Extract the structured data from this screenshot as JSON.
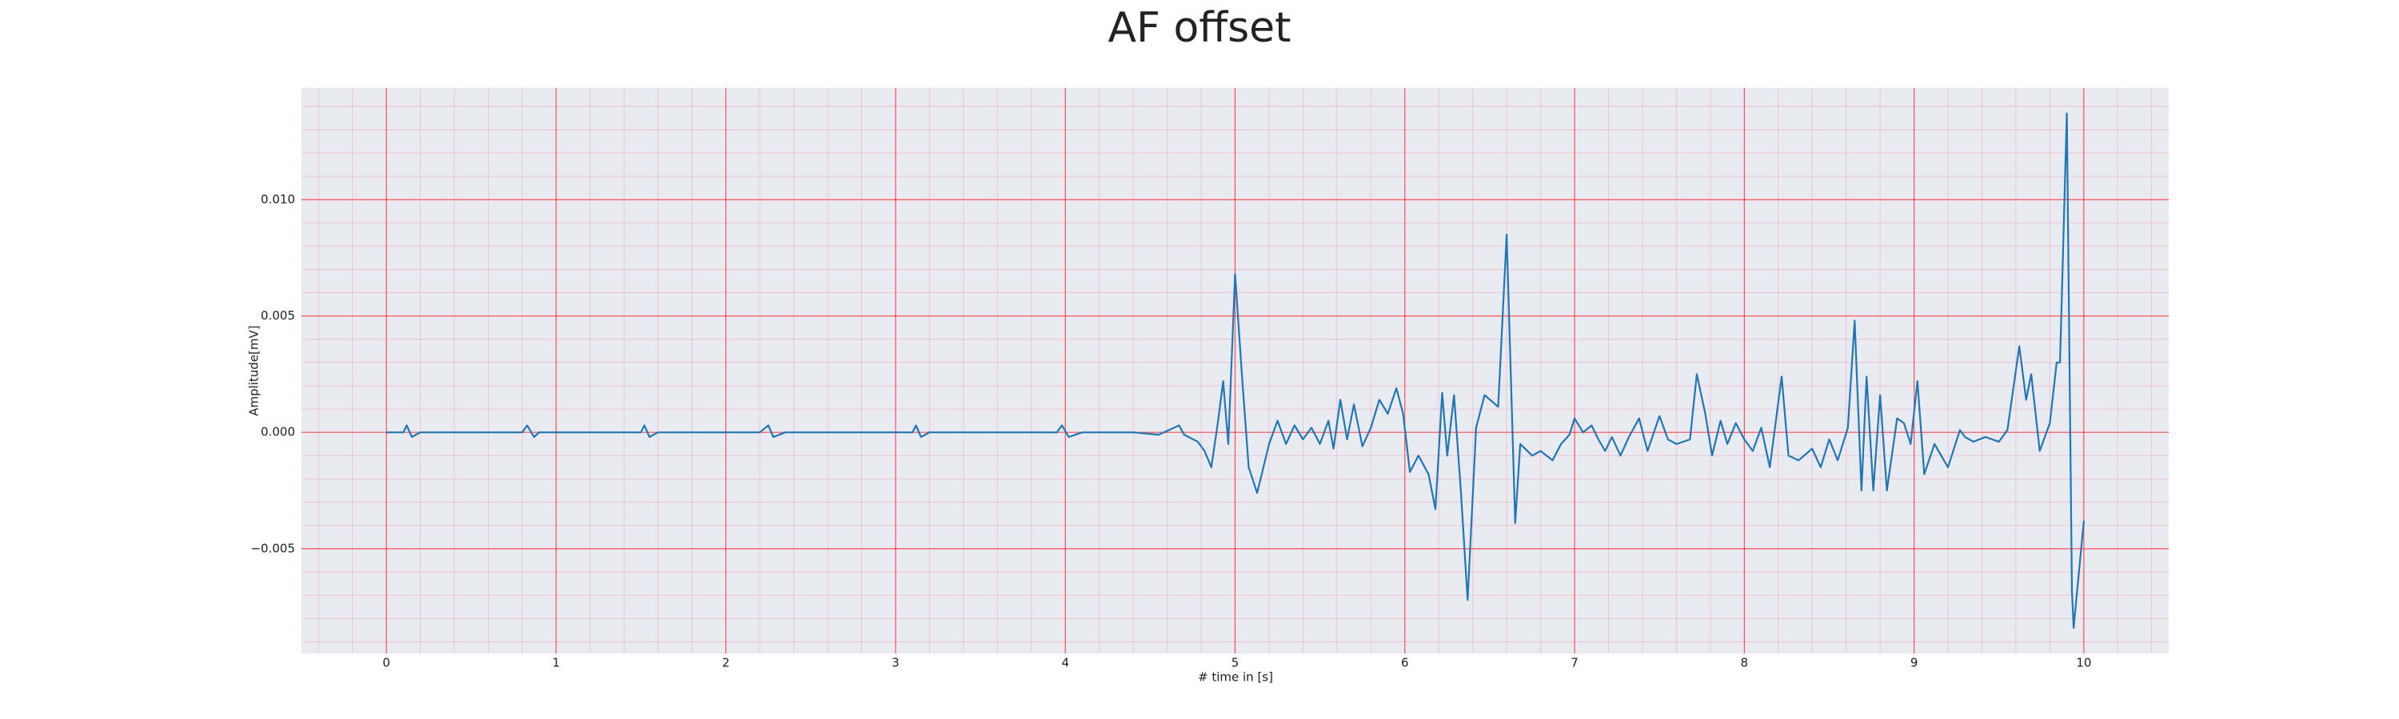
{
  "chart_data": {
    "type": "line",
    "title": "AF offset",
    "xlabel": "# time in [s]",
    "ylabel": "Amplitude[mV]",
    "xlim": [
      -0.5,
      10.5
    ],
    "ylim": [
      -0.0095,
      0.0148
    ],
    "xticks": [
      0,
      1,
      2,
      3,
      4,
      5,
      6,
      7,
      8,
      9,
      10
    ],
    "yticks": [
      {
        "value": -0.005,
        "label": "−0.005"
      },
      {
        "value": 0,
        "label": "0.000"
      },
      {
        "value": 0.005,
        "label": "0.005"
      },
      {
        "value": 0.01,
        "label": "0.010"
      }
    ],
    "grid": true,
    "minor_divisions": 5,
    "grid_color": "#ff0000",
    "background": "#eaeaf2",
    "x": [
      0.0,
      0.1,
      0.12,
      0.15,
      0.2,
      0.5,
      0.8,
      0.83,
      0.87,
      0.9,
      1.5,
      1.52,
      1.55,
      1.6,
      2.2,
      2.25,
      2.28,
      2.35,
      3.1,
      3.12,
      3.15,
      3.2,
      3.95,
      3.98,
      4.02,
      4.1,
      4.4,
      4.55,
      4.67,
      4.7,
      4.78,
      4.82,
      4.86,
      4.9,
      4.93,
      4.96,
      5.0,
      5.04,
      5.08,
      5.13,
      5.2,
      5.25,
      5.3,
      5.35,
      5.4,
      5.45,
      5.5,
      5.55,
      5.58,
      5.62,
      5.66,
      5.7,
      5.75,
      5.8,
      5.85,
      5.9,
      5.95,
      5.99,
      6.03,
      6.08,
      6.14,
      6.18,
      6.22,
      6.25,
      6.29,
      6.33,
      6.37,
      6.42,
      6.47,
      6.55,
      6.6,
      6.65,
      6.68,
      6.75,
      6.8,
      6.87,
      6.92,
      6.97,
      7.0,
      7.05,
      7.1,
      7.14,
      7.18,
      7.22,
      7.27,
      7.32,
      7.38,
      7.43,
      7.5,
      7.55,
      7.6,
      7.68,
      7.72,
      7.77,
      7.81,
      7.86,
      7.9,
      7.95,
      8.0,
      8.05,
      8.1,
      8.15,
      8.22,
      8.26,
      8.32,
      8.4,
      8.45,
      8.5,
      8.55,
      8.61,
      8.65,
      8.69,
      8.72,
      8.76,
      8.8,
      8.84,
      8.9,
      8.94,
      8.98,
      9.02,
      9.06,
      9.12,
      9.2,
      9.27,
      9.3,
      9.35,
      9.42,
      9.5,
      9.55,
      9.62,
      9.66,
      9.69,
      9.74,
      9.8,
      9.84,
      9.86,
      9.9,
      9.93,
      9.94,
      10.0
    ],
    "series": [
      {
        "name": "AF offset",
        "color": "#1f77b4",
        "values": [
          0.0,
          0.0,
          0.0003,
          -0.0002,
          0.0,
          0.0,
          0.0,
          0.0003,
          -0.0002,
          0.0,
          0.0,
          0.0003,
          -0.0002,
          0.0,
          0.0,
          0.0003,
          -0.0002,
          0.0,
          0.0,
          0.0003,
          -0.0002,
          0.0,
          0.0,
          0.0003,
          -0.0002,
          0.0,
          0.0,
          -0.0001,
          0.0003,
          -0.0001,
          -0.0004,
          -0.0008,
          -0.0015,
          0.0005,
          0.0022,
          -0.0005,
          0.0068,
          0.0025,
          -0.0015,
          -0.0026,
          -0.0005,
          0.0005,
          -0.0005,
          0.0003,
          -0.0003,
          0.0002,
          -0.0005,
          0.0005,
          -0.0007,
          0.0014,
          -0.0003,
          0.0012,
          -0.0006,
          0.0002,
          0.0014,
          0.0008,
          0.0019,
          0.0008,
          -0.0017,
          -0.001,
          -0.0018,
          -0.0033,
          0.0017,
          -0.001,
          0.0016,
          -0.0025,
          -0.0072,
          0.0002,
          0.0016,
          0.0011,
          0.0085,
          -0.0039,
          -0.0005,
          -0.001,
          -0.0008,
          -0.0012,
          -0.0005,
          -0.0001,
          0.0006,
          0.0,
          0.0003,
          -0.0003,
          -0.0008,
          -0.0002,
          -0.001,
          -0.0002,
          0.0006,
          -0.0008,
          0.0007,
          -0.0003,
          -0.0005,
          -0.0003,
          0.0025,
          0.0008,
          -0.001,
          0.0005,
          -0.0005,
          0.0004,
          -0.0003,
          -0.0008,
          0.0002,
          -0.0015,
          0.0024,
          -0.001,
          -0.0012,
          -0.0007,
          -0.0015,
          -0.0003,
          -0.0012,
          0.0002,
          0.0048,
          -0.0025,
          0.0024,
          -0.0025,
          0.0016,
          -0.0025,
          0.0006,
          0.0004,
          -0.0005,
          0.0022,
          -0.0018,
          -0.0005,
          -0.0015,
          0.0001,
          -0.0002,
          -0.0004,
          -0.0002,
          -0.0004,
          0.0001,
          0.0037,
          0.0014,
          0.0025,
          -0.0008,
          0.0004,
          0.003,
          0.003,
          0.0137,
          -0.0068,
          -0.0084,
          -0.0038
        ]
      }
    ]
  }
}
